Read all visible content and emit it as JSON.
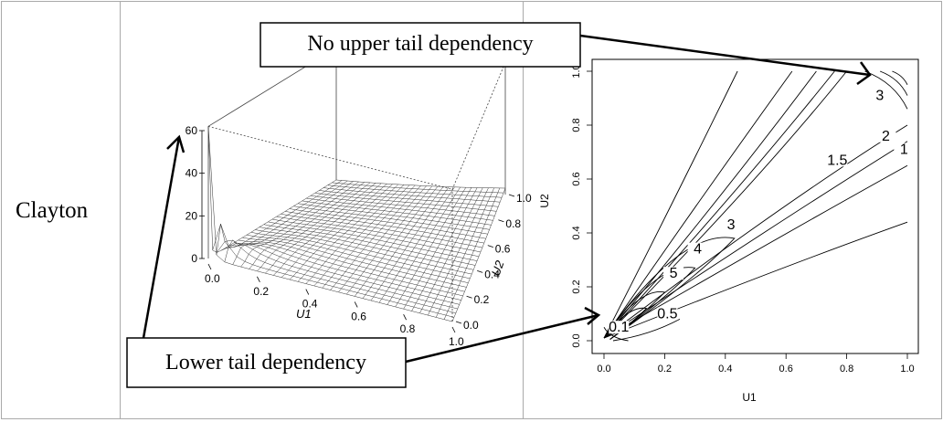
{
  "row_label": "Clayton",
  "callouts": {
    "upper": "No upper tail dependency",
    "lower": "Lower tail dependency"
  },
  "chart_data": [
    {
      "type": "surface",
      "xlabel": "U1",
      "ylabel": "U2",
      "x_ticks": [
        "0.0",
        "0.2",
        "0.4",
        "0.6",
        "0.8",
        "1.0"
      ],
      "y_ticks": [
        "0.0",
        "0.2",
        "0.4",
        "0.6",
        "0.8",
        "1.0"
      ],
      "z_ticks": [
        "0",
        "20",
        "40",
        "60"
      ],
      "xlim": [
        0,
        1
      ],
      "ylim": [
        0,
        1
      ],
      "zlim": [
        0,
        62
      ]
    },
    {
      "type": "contour",
      "xlabel": "U1",
      "ylabel": "U2",
      "x_ticks": [
        "0.0",
        "0.2",
        "0.4",
        "0.6",
        "0.8",
        "1.0"
      ],
      "y_ticks": [
        "0.0",
        "0.2",
        "0.4",
        "0.6",
        "0.8",
        "1.0"
      ],
      "xlim": [
        0,
        1
      ],
      "ylim": [
        0,
        1
      ],
      "contour_labels": [
        "0.1",
        "0.5",
        "1",
        "1.5",
        "2",
        "3",
        "3",
        "4",
        "5"
      ]
    }
  ]
}
